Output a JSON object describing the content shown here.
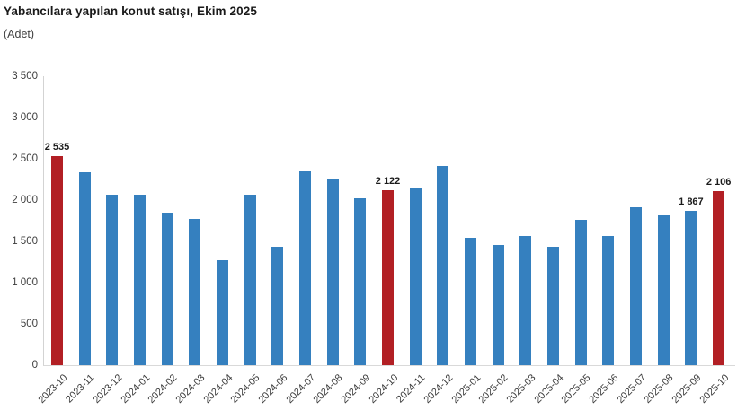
{
  "header": {
    "title": "Yabancılara yapılan konut satışı, Ekim 2025",
    "subtitle": "(Adet)"
  },
  "chart_data": {
    "type": "bar",
    "title": "Yabancılara yapılan konut satışı, Ekim 2025",
    "subtitle": "(Adet)",
    "ylabel": "Adet",
    "xlabel": "",
    "ylim": [
      0,
      3500
    ],
    "grid": false,
    "legend": "none",
    "yticks": [
      {
        "value": 0,
        "label": "0"
      },
      {
        "value": 500,
        "label": "500"
      },
      {
        "value": 1000,
        "label": "1 000"
      },
      {
        "value": 1500,
        "label": "1 500"
      },
      {
        "value": 2000,
        "label": "2 000"
      },
      {
        "value": 2500,
        "label": "2 500"
      },
      {
        "value": 3000,
        "label": "3 000"
      },
      {
        "value": 3500,
        "label": "3 500"
      }
    ],
    "categories": [
      "2023-10",
      "2023-11",
      "2023-12",
      "2024-01",
      "2024-02",
      "2024-03",
      "2024-04",
      "2024-05",
      "2024-06",
      "2024-07",
      "2024-08",
      "2024-09",
      "2024-10",
      "2024-11",
      "2024-12",
      "2025-01",
      "2025-02",
      "2025-03",
      "2025-04",
      "2025-05",
      "2025-06",
      "2025-07",
      "2025-08",
      "2025-09",
      "2025-10"
    ],
    "values": [
      2535,
      2340,
      2065,
      2060,
      1845,
      1775,
      1270,
      2065,
      1440,
      2350,
      2255,
      2020,
      2122,
      2145,
      2415,
      1545,
      1455,
      1570,
      1440,
      1765,
      1560,
      1915,
      1815,
      1867,
      2106
    ],
    "highlight_indices": [
      0,
      12,
      24
    ],
    "data_labels": {
      "0": "2 535",
      "12": "2 122",
      "23": "1 867",
      "24": "2 106"
    },
    "bar_color": "#3580bf",
    "highlight_color": "#b21f24",
    "axis_line_color": "#d9d9d9",
    "label_color": "#1a1a1a"
  }
}
